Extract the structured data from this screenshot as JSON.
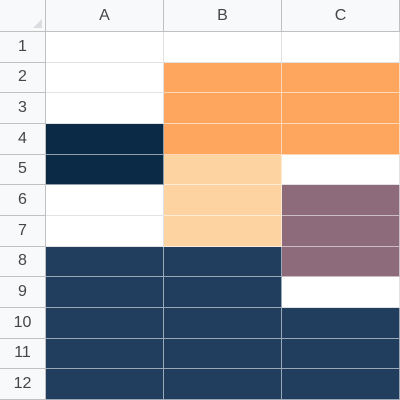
{
  "columns": [
    "A",
    "B",
    "C"
  ],
  "rows": [
    "1",
    "2",
    "3",
    "4",
    "5",
    "6",
    "7",
    "8",
    "9",
    "10",
    "11",
    "12"
  ],
  "cells": [
    [
      "#ffffff",
      "#ffffff",
      "#ffffff"
    ],
    [
      "#ffffff",
      "#ffa65e",
      "#ffa65e"
    ],
    [
      "#ffffff",
      "#ffa65e",
      "#ffa65e"
    ],
    [
      "#0b2a46",
      "#ffa65e",
      "#ffa65e"
    ],
    [
      "#0b2a46",
      "#fdd3a2",
      "#ffffff"
    ],
    [
      "#ffffff",
      "#fdd3a2",
      "#8e6b7b"
    ],
    [
      "#ffffff",
      "#fdd3a2",
      "#8e6b7b"
    ],
    [
      "#223e5e",
      "#223e5e",
      "#8e6b7b"
    ],
    [
      "#223e5e",
      "#223e5e",
      "#ffffff"
    ],
    [
      "#223e5e",
      "#223e5e",
      "#223e5e"
    ],
    [
      "#223e5e",
      "#223e5e",
      "#223e5e"
    ],
    [
      "#223e5e",
      "#223e5e",
      "#223e5e"
    ]
  ]
}
